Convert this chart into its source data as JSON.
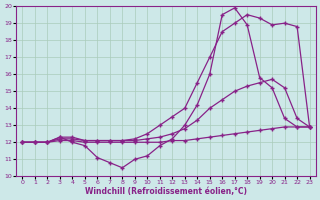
{
  "xlabel": "Windchill (Refroidissement éolien,°C)",
  "xlim": [
    -0.5,
    23.5
  ],
  "ylim": [
    10,
    20
  ],
  "xticks": [
    0,
    1,
    2,
    3,
    4,
    5,
    6,
    7,
    8,
    9,
    10,
    11,
    12,
    13,
    14,
    15,
    16,
    17,
    18,
    19,
    20,
    21,
    22,
    23
  ],
  "yticks": [
    10,
    11,
    12,
    13,
    14,
    15,
    16,
    17,
    18,
    19,
    20
  ],
  "background_color": "#cde8e8",
  "grid_color": "#aaccbb",
  "line_color": "#882288",
  "line1_x": [
    0,
    1,
    2,
    3,
    4,
    5,
    6,
    7,
    8,
    9,
    10,
    11,
    12,
    13,
    14,
    15,
    16,
    17,
    18,
    19,
    20,
    21,
    22,
    23
  ],
  "line1_y": [
    12.0,
    12.0,
    12.0,
    12.3,
    12.0,
    11.8,
    11.1,
    10.8,
    10.5,
    11.0,
    11.2,
    11.8,
    12.2,
    13.0,
    14.2,
    16.0,
    19.5,
    19.9,
    18.9,
    15.8,
    15.2,
    13.4,
    12.9,
    12.9
  ],
  "line2_x": [
    0,
    1,
    2,
    3,
    4,
    5,
    6,
    7,
    8,
    9,
    10,
    11,
    12,
    13,
    14,
    15,
    16,
    17,
    18,
    19,
    20,
    21,
    22,
    23
  ],
  "line2_y": [
    12.0,
    12.0,
    12.0,
    12.3,
    12.3,
    12.1,
    12.1,
    12.1,
    12.1,
    12.2,
    12.5,
    13.0,
    13.5,
    14.0,
    15.5,
    17.0,
    18.5,
    19.0,
    19.5,
    19.3,
    18.9,
    19.0,
    18.8,
    12.9
  ],
  "line3_x": [
    0,
    1,
    2,
    3,
    4,
    5,
    6,
    7,
    8,
    9,
    10,
    11,
    12,
    13,
    14,
    15,
    16,
    17,
    18,
    19,
    20,
    21,
    22,
    23
  ],
  "line3_y": [
    12.0,
    12.0,
    12.0,
    12.2,
    12.2,
    12.1,
    12.1,
    12.1,
    12.1,
    12.1,
    12.2,
    12.3,
    12.5,
    12.8,
    13.3,
    14.0,
    14.5,
    15.0,
    15.3,
    15.5,
    15.7,
    15.2,
    13.4,
    12.9
  ],
  "line4_x": [
    0,
    1,
    2,
    3,
    4,
    5,
    6,
    7,
    8,
    9,
    10,
    11,
    12,
    13,
    14,
    15,
    16,
    17,
    18,
    19,
    20,
    21,
    22,
    23
  ],
  "line4_y": [
    12.0,
    12.0,
    12.0,
    12.1,
    12.1,
    12.0,
    12.0,
    12.0,
    12.0,
    12.0,
    12.0,
    12.0,
    12.1,
    12.1,
    12.2,
    12.3,
    12.4,
    12.5,
    12.6,
    12.7,
    12.8,
    12.9,
    12.9,
    12.9
  ]
}
